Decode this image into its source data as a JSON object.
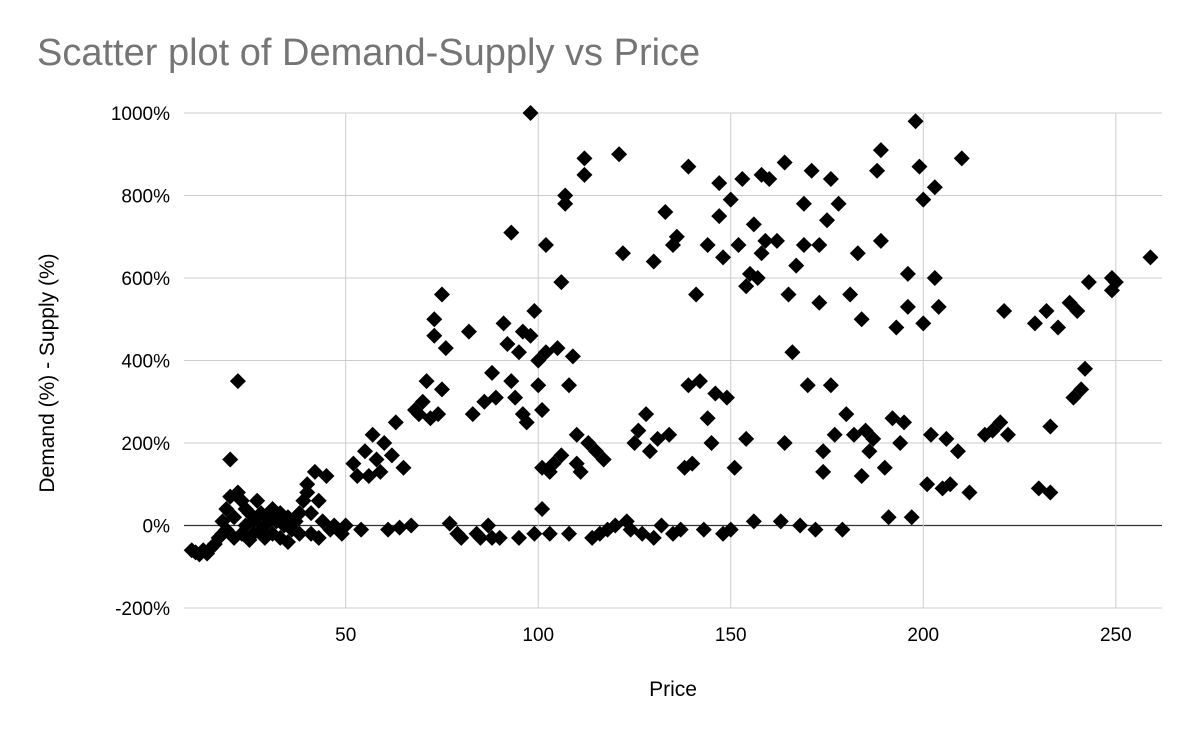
{
  "chart_data": {
    "type": "scatter",
    "title": "Scatter plot of Demand-Supply vs Price",
    "xlabel": "Price",
    "ylabel": "Demand (%) - Supply (%)",
    "xlim": [
      8,
      262
    ],
    "ylim": [
      -200,
      1000
    ],
    "xticks": [
      50,
      100,
      150,
      200,
      250
    ],
    "yticks": [
      -200,
      0,
      200,
      400,
      600,
      800,
      1000
    ],
    "ytick_labels": [
      "-200%",
      "0%",
      "200%",
      "400%",
      "600%",
      "800%",
      "1000%"
    ],
    "grid": true,
    "marker": "diamond",
    "marker_color": "#000000",
    "series": [
      {
        "name": "Demand-Supply",
        "points": [
          [
            10,
            -60
          ],
          [
            11,
            -65
          ],
          [
            12,
            -70
          ],
          [
            13,
            -60
          ],
          [
            14,
            -68
          ],
          [
            15,
            -55
          ],
          [
            16,
            -45
          ],
          [
            17,
            -30
          ],
          [
            18,
            -20
          ],
          [
            18,
            10
          ],
          [
            19,
            -10
          ],
          [
            19,
            40
          ],
          [
            20,
            70
          ],
          [
            20,
            160
          ],
          [
            21,
            20
          ],
          [
            21,
            -30
          ],
          [
            22,
            80
          ],
          [
            22,
            350
          ],
          [
            23,
            60
          ],
          [
            23,
            -20
          ],
          [
            24,
            40
          ],
          [
            24,
            0
          ],
          [
            25,
            30
          ],
          [
            25,
            -35
          ],
          [
            26,
            10
          ],
          [
            26,
            -20
          ],
          [
            27,
            60
          ],
          [
            27,
            20
          ],
          [
            28,
            -10
          ],
          [
            28,
            30
          ],
          [
            29,
            0
          ],
          [
            29,
            -30
          ],
          [
            30,
            20
          ],
          [
            31,
            40
          ],
          [
            31,
            -20
          ],
          [
            32,
            10
          ],
          [
            33,
            30
          ],
          [
            33,
            -30
          ],
          [
            34,
            0
          ],
          [
            35,
            20
          ],
          [
            35,
            -40
          ],
          [
            36,
            -10
          ],
          [
            37,
            10
          ],
          [
            38,
            -20
          ],
          [
            38,
            30
          ],
          [
            39,
            60
          ],
          [
            40,
            80
          ],
          [
            40,
            100
          ],
          [
            41,
            -20
          ],
          [
            41,
            30
          ],
          [
            42,
            130
          ],
          [
            43,
            60
          ],
          [
            43,
            -30
          ],
          [
            44,
            10
          ],
          [
            45,
            120
          ],
          [
            46,
            -10
          ],
          [
            47,
            0
          ],
          [
            48,
            -10
          ],
          [
            49,
            -20
          ],
          [
            50,
            0
          ],
          [
            52,
            150
          ],
          [
            53,
            120
          ],
          [
            54,
            -10
          ],
          [
            55,
            180
          ],
          [
            56,
            120
          ],
          [
            57,
            220
          ],
          [
            58,
            160
          ],
          [
            59,
            130
          ],
          [
            60,
            200
          ],
          [
            61,
            -10
          ],
          [
            62,
            170
          ],
          [
            63,
            250
          ],
          [
            64,
            -5
          ],
          [
            65,
            140
          ],
          [
            67,
            0
          ],
          [
            68,
            280
          ],
          [
            69,
            270
          ],
          [
            70,
            300
          ],
          [
            71,
            350
          ],
          [
            72,
            260
          ],
          [
            73,
            500
          ],
          [
            73,
            460
          ],
          [
            74,
            270
          ],
          [
            75,
            330
          ],
          [
            75,
            560
          ],
          [
            76,
            430
          ],
          [
            77,
            5
          ],
          [
            79,
            -20
          ],
          [
            80,
            -30
          ],
          [
            82,
            470
          ],
          [
            83,
            270
          ],
          [
            84,
            -20
          ],
          [
            85,
            -30
          ],
          [
            86,
            300
          ],
          [
            87,
            0
          ],
          [
            88,
            370
          ],
          [
            88,
            -30
          ],
          [
            89,
            310
          ],
          [
            90,
            -30
          ],
          [
            91,
            490
          ],
          [
            92,
            440
          ],
          [
            93,
            350
          ],
          [
            93,
            710
          ],
          [
            94,
            310
          ],
          [
            95,
            420
          ],
          [
            95,
            -30
          ],
          [
            96,
            270
          ],
          [
            96,
            470
          ],
          [
            97,
            250
          ],
          [
            98,
            460
          ],
          [
            98,
            1000
          ],
          [
            99,
            520
          ],
          [
            99,
            -20
          ],
          [
            100,
            400
          ],
          [
            100,
            340
          ],
          [
            101,
            280
          ],
          [
            101,
            40
          ],
          [
            101,
            140
          ],
          [
            102,
            680
          ],
          [
            102,
            420
          ],
          [
            103,
            130
          ],
          [
            103,
            -20
          ],
          [
            104,
            150
          ],
          [
            105,
            430
          ],
          [
            106,
            170
          ],
          [
            106,
            590
          ],
          [
            107,
            800
          ],
          [
            107,
            780
          ],
          [
            108,
            340
          ],
          [
            108,
            -20
          ],
          [
            109,
            410
          ],
          [
            110,
            150
          ],
          [
            110,
            220
          ],
          [
            111,
            130
          ],
          [
            112,
            890
          ],
          [
            112,
            850
          ],
          [
            113,
            200
          ],
          [
            114,
            -30
          ],
          [
            115,
            180
          ],
          [
            116,
            -20
          ],
          [
            117,
            160
          ],
          [
            118,
            -10
          ],
          [
            120,
            0
          ],
          [
            121,
            900
          ],
          [
            122,
            660
          ],
          [
            123,
            10
          ],
          [
            124,
            -10
          ],
          [
            125,
            200
          ],
          [
            126,
            230
          ],
          [
            127,
            -20
          ],
          [
            128,
            270
          ],
          [
            129,
            180
          ],
          [
            130,
            640
          ],
          [
            130,
            -30
          ],
          [
            131,
            210
          ],
          [
            132,
            0
          ],
          [
            133,
            760
          ],
          [
            134,
            220
          ],
          [
            135,
            680
          ],
          [
            135,
            -20
          ],
          [
            136,
            700
          ],
          [
            137,
            -10
          ],
          [
            138,
            140
          ],
          [
            139,
            870
          ],
          [
            139,
            340
          ],
          [
            140,
            150
          ],
          [
            141,
            560
          ],
          [
            142,
            350
          ],
          [
            143,
            -10
          ],
          [
            144,
            260
          ],
          [
            144,
            680
          ],
          [
            145,
            200
          ],
          [
            146,
            320
          ],
          [
            147,
            830
          ],
          [
            147,
            750
          ],
          [
            148,
            650
          ],
          [
            148,
            -20
          ],
          [
            149,
            310
          ],
          [
            150,
            790
          ],
          [
            150,
            -10
          ],
          [
            151,
            140
          ],
          [
            152,
            680
          ],
          [
            153,
            840
          ],
          [
            154,
            580
          ],
          [
            154,
            210
          ],
          [
            155,
            610
          ],
          [
            156,
            730
          ],
          [
            156,
            10
          ],
          [
            157,
            600
          ],
          [
            158,
            850
          ],
          [
            158,
            660
          ],
          [
            159,
            690
          ],
          [
            160,
            840
          ],
          [
            162,
            690
          ],
          [
            163,
            10
          ],
          [
            164,
            880
          ],
          [
            164,
            200
          ],
          [
            165,
            560
          ],
          [
            166,
            420
          ],
          [
            167,
            630
          ],
          [
            168,
            0
          ],
          [
            169,
            680
          ],
          [
            169,
            780
          ],
          [
            170,
            340
          ],
          [
            171,
            860
          ],
          [
            172,
            -10
          ],
          [
            173,
            680
          ],
          [
            173,
            540
          ],
          [
            174,
            130
          ],
          [
            174,
            180
          ],
          [
            175,
            740
          ],
          [
            176,
            840
          ],
          [
            176,
            340
          ],
          [
            177,
            220
          ],
          [
            178,
            780
          ],
          [
            179,
            -10
          ],
          [
            180,
            270
          ],
          [
            181,
            560
          ],
          [
            182,
            220
          ],
          [
            183,
            660
          ],
          [
            184,
            500
          ],
          [
            184,
            120
          ],
          [
            185,
            230
          ],
          [
            186,
            180
          ],
          [
            187,
            210
          ],
          [
            188,
            860
          ],
          [
            189,
            910
          ],
          [
            189,
            690
          ],
          [
            190,
            140
          ],
          [
            191,
            20
          ],
          [
            192,
            260
          ],
          [
            193,
            480
          ],
          [
            194,
            200
          ],
          [
            195,
            250
          ],
          [
            196,
            530
          ],
          [
            196,
            610
          ],
          [
            197,
            20
          ],
          [
            198,
            980
          ],
          [
            199,
            870
          ],
          [
            200,
            790
          ],
          [
            200,
            490
          ],
          [
            201,
            100
          ],
          [
            202,
            220
          ],
          [
            203,
            600
          ],
          [
            203,
            820
          ],
          [
            204,
            530
          ],
          [
            205,
            90
          ],
          [
            206,
            210
          ],
          [
            207,
            100
          ],
          [
            209,
            180
          ],
          [
            210,
            890
          ],
          [
            212,
            80
          ],
          [
            216,
            220
          ],
          [
            218,
            230
          ],
          [
            220,
            250
          ],
          [
            221,
            520
          ],
          [
            222,
            220
          ],
          [
            229,
            490
          ],
          [
            230,
            90
          ],
          [
            232,
            520
          ],
          [
            233,
            240
          ],
          [
            233,
            80
          ],
          [
            235,
            480
          ],
          [
            238,
            540
          ],
          [
            239,
            310
          ],
          [
            240,
            520
          ],
          [
            241,
            330
          ],
          [
            242,
            380
          ],
          [
            243,
            590
          ],
          [
            249,
            600
          ],
          [
            249,
            570
          ],
          [
            250,
            590
          ],
          [
            259,
            650
          ]
        ]
      }
    ]
  }
}
